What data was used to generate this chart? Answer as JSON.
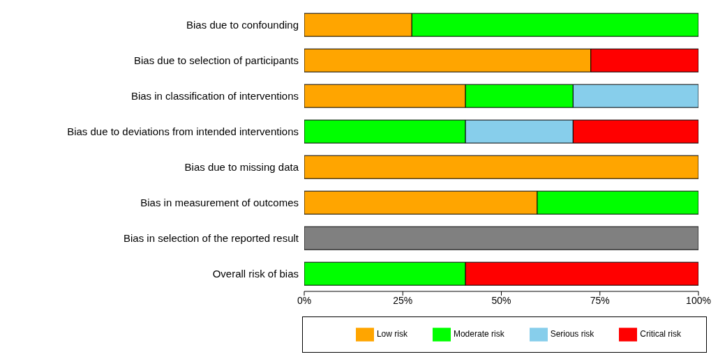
{
  "chart_data": {
    "type": "bar",
    "orientation": "horizontal",
    "stacked": true,
    "categories": [
      "Bias due to confounding",
      "Bias due to selection of participants",
      "Bias in classification of interventions",
      "Bias due to deviations from intended interventions",
      "Bias due to missing data",
      "Bias in measurement of outcomes",
      "Bias in selection of the reported result",
      "Overall risk of bias"
    ],
    "series": [
      {
        "name": "Low risk",
        "color": "#ffa500",
        "values": [
          27.3,
          72.7,
          40.9,
          0,
          100,
          59.1,
          0,
          0
        ]
      },
      {
        "name": "Moderate risk",
        "color": "#00ff00",
        "values": [
          72.7,
          0,
          27.3,
          40.9,
          0,
          40.9,
          0,
          40.9
        ]
      },
      {
        "name": "Serious risk",
        "color": "#87ceeb",
        "values": [
          0,
          0,
          31.8,
          27.3,
          0,
          0,
          0,
          0
        ]
      },
      {
        "name": "Critical risk",
        "color": "#ff0000",
        "values": [
          0,
          27.3,
          0,
          31.8,
          0,
          0,
          0,
          59.1
        ]
      },
      {
        "color": "#808080",
        "values": [
          0,
          0,
          0,
          0,
          0,
          0,
          100,
          0
        ]
      }
    ],
    "xlim": [
      0,
      100
    ],
    "xticks": [
      {
        "value": 0,
        "label": "0%"
      },
      {
        "value": 25,
        "label": "25%"
      },
      {
        "value": 50,
        "label": "50%"
      },
      {
        "value": 75,
        "label": "75%"
      },
      {
        "value": 100,
        "label": "100%"
      }
    ],
    "grid": false,
    "legend": "bottom"
  }
}
